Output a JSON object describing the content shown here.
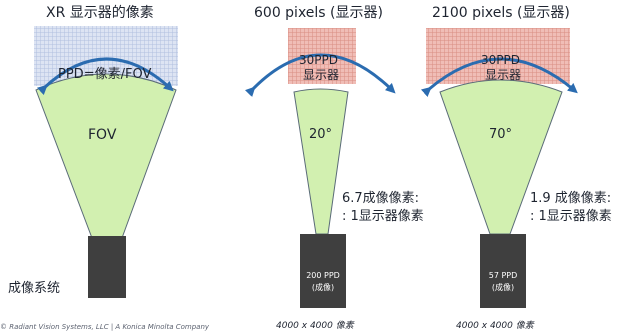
{
  "panels": [
    {
      "title": "XR 显示器的像素",
      "formula": "PPD=像素/FOV",
      "cone_label": "FOV",
      "side_label": "成像系统"
    },
    {
      "title": "600 pixels (显示器)",
      "ppd_line1": "30PPD",
      "ppd_line2": "显示器",
      "angle": "20°",
      "ratio_line1": "6.7成像像素:",
      "ratio_line2": ": 1显示器像素",
      "camera_ppd": "200 PPD",
      "camera_sub": "(成像)",
      "resolution": "4000 x 4000 像素"
    },
    {
      "title": "2100 pixels (显示器)",
      "ppd_line1": "30PPD",
      "ppd_line2": "显示器",
      "angle": "70°",
      "ratio_line1": "1.9 成像像素:",
      "ratio_line2": ": 1显示器像素",
      "camera_ppd": "57 PPD",
      "camera_sub": "(成像)",
      "resolution": "4000 x 4000 像素"
    }
  ],
  "footer": "© Radiant Vision Systems, LLC | A Konica Minolta Company",
  "colors": {
    "blue_grid": "#c9d3ea",
    "red_grid": "#e8a49b",
    "cone_green": "#d2f0b0",
    "arc_blue": "#2b6cb0",
    "camera": "#3f3f3f"
  }
}
